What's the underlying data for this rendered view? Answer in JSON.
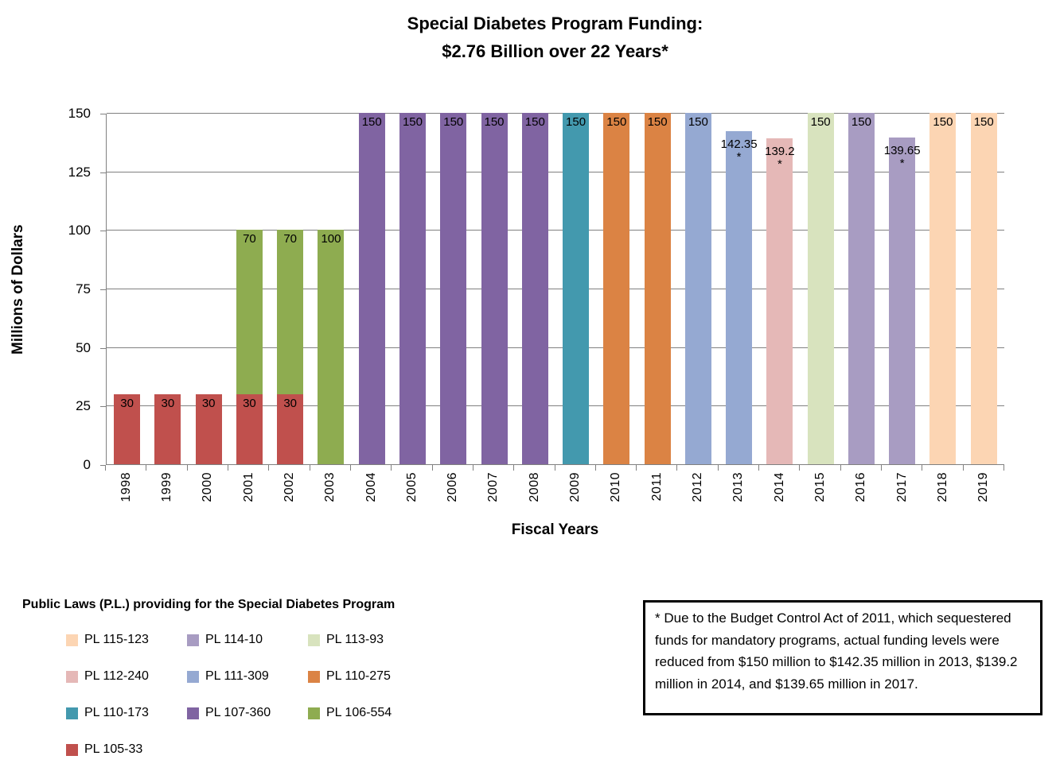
{
  "chart_data": {
    "type": "bar",
    "stacked": true,
    "title": "Special Diabetes Program Funding: $2.76 Billion over 22 Years*",
    "title_lines": [
      "Special Diabetes Program Funding:",
      "$2.76 Billion over 22 Years*"
    ],
    "xlabel": "Fiscal Years",
    "ylabel": "Millions of Dollars",
    "ylim": [
      0,
      150
    ],
    "yticks": [
      0,
      25,
      50,
      75,
      100,
      125,
      150
    ],
    "grid": true,
    "gridline_color": "#808080",
    "categories": [
      "1998",
      "1999",
      "2000",
      "2001",
      "2002",
      "2003",
      "2004",
      "2005",
      "2006",
      "2007",
      "2008",
      "2009",
      "2010",
      "2011",
      "2012",
      "2013",
      "2014",
      "2015",
      "2016",
      "2017",
      "2018",
      "2019"
    ],
    "bars": [
      {
        "year": "1998",
        "segments": [
          {
            "law": "PL 105-33",
            "value": 30,
            "label": "30"
          }
        ]
      },
      {
        "year": "1999",
        "segments": [
          {
            "law": "PL 105-33",
            "value": 30,
            "label": "30"
          }
        ]
      },
      {
        "year": "2000",
        "segments": [
          {
            "law": "PL 105-33",
            "value": 30,
            "label": "30"
          }
        ]
      },
      {
        "year": "2001",
        "segments": [
          {
            "law": "PL 105-33",
            "value": 30,
            "label": "30"
          },
          {
            "law": "PL 106-554",
            "value": 70,
            "label": "70"
          }
        ]
      },
      {
        "year": "2002",
        "segments": [
          {
            "law": "PL 105-33",
            "value": 30,
            "label": "30"
          },
          {
            "law": "PL 106-554",
            "value": 70,
            "label": "70"
          }
        ]
      },
      {
        "year": "2003",
        "segments": [
          {
            "law": "PL 106-554",
            "value": 100,
            "label": "100"
          }
        ]
      },
      {
        "year": "2004",
        "segments": [
          {
            "law": "PL 107-360",
            "value": 150,
            "label": "150"
          }
        ]
      },
      {
        "year": "2005",
        "segments": [
          {
            "law": "PL 107-360",
            "value": 150,
            "label": "150"
          }
        ]
      },
      {
        "year": "2006",
        "segments": [
          {
            "law": "PL 107-360",
            "value": 150,
            "label": "150"
          }
        ]
      },
      {
        "year": "2007",
        "segments": [
          {
            "law": "PL 107-360",
            "value": 150,
            "label": "150"
          }
        ]
      },
      {
        "year": "2008",
        "segments": [
          {
            "law": "PL 107-360",
            "value": 150,
            "label": "150"
          }
        ]
      },
      {
        "year": "2009",
        "segments": [
          {
            "law": "PL 110-173",
            "value": 150,
            "label": "150"
          }
        ]
      },
      {
        "year": "2010",
        "segments": [
          {
            "law": "PL 110-275",
            "value": 150,
            "label": "150"
          }
        ]
      },
      {
        "year": "2011",
        "segments": [
          {
            "law": "PL 110-275",
            "value": 150,
            "label": "150"
          }
        ]
      },
      {
        "year": "2012",
        "segments": [
          {
            "law": "PL 111-309",
            "value": 150,
            "label": "150"
          }
        ]
      },
      {
        "year": "2013",
        "segments": [
          {
            "law": "PL 111-309",
            "value": 142.35,
            "label": "142.35"
          }
        ],
        "star": true
      },
      {
        "year": "2014",
        "segments": [
          {
            "law": "PL 112-240",
            "value": 139.2,
            "label": "139.2"
          }
        ],
        "star": true
      },
      {
        "year": "2015",
        "segments": [
          {
            "law": "PL 113-93",
            "value": 150,
            "label": "150"
          }
        ]
      },
      {
        "year": "2016",
        "segments": [
          {
            "law": "PL 114-10",
            "value": 150,
            "label": "150"
          }
        ]
      },
      {
        "year": "2017",
        "segments": [
          {
            "law": "PL 114-10",
            "value": 139.65,
            "label": "139.65"
          }
        ],
        "star": true
      },
      {
        "year": "2018",
        "segments": [
          {
            "law": "PL 115-123",
            "value": 150,
            "label": "150"
          }
        ]
      },
      {
        "year": "2019",
        "segments": [
          {
            "law": "PL 115-123",
            "value": 150,
            "label": "150"
          }
        ]
      }
    ],
    "law_colors": {
      "PL 115-123": "#FCD5B3",
      "PL 114-10": "#A89CC2",
      "PL 113-93": "#D8E3BE",
      "PL 112-240": "#E5B8B7",
      "PL 111-309": "#95A9D2",
      "PL 110-275": "#DB8344",
      "PL 110-173": "#4399AE",
      "PL 107-360": "#8064A2",
      "PL 106-554": "#8EAC50",
      "PL 105-33": "#C0504D"
    }
  },
  "legend": {
    "title": "Public Laws (P.L.) providing for the Special Diabetes Program",
    "items": [
      "PL 115-123",
      "PL 114-10",
      "PL 113-93",
      "PL 112-240",
      "PL 111-309",
      "PL 110-275",
      "PL 110-173",
      "PL 107-360",
      "PL 106-554",
      "PL 105-33"
    ],
    "position": "bottom-left",
    "columns": 3
  },
  "note": {
    "text": "* Due to the Budget Control Act of 2011, which sequestered funds for mandatory programs, actual funding levels were reduced from $150 million to $142.35 million in 2013, $139.2 million in 2014, and $139.65 million in 2017."
  }
}
